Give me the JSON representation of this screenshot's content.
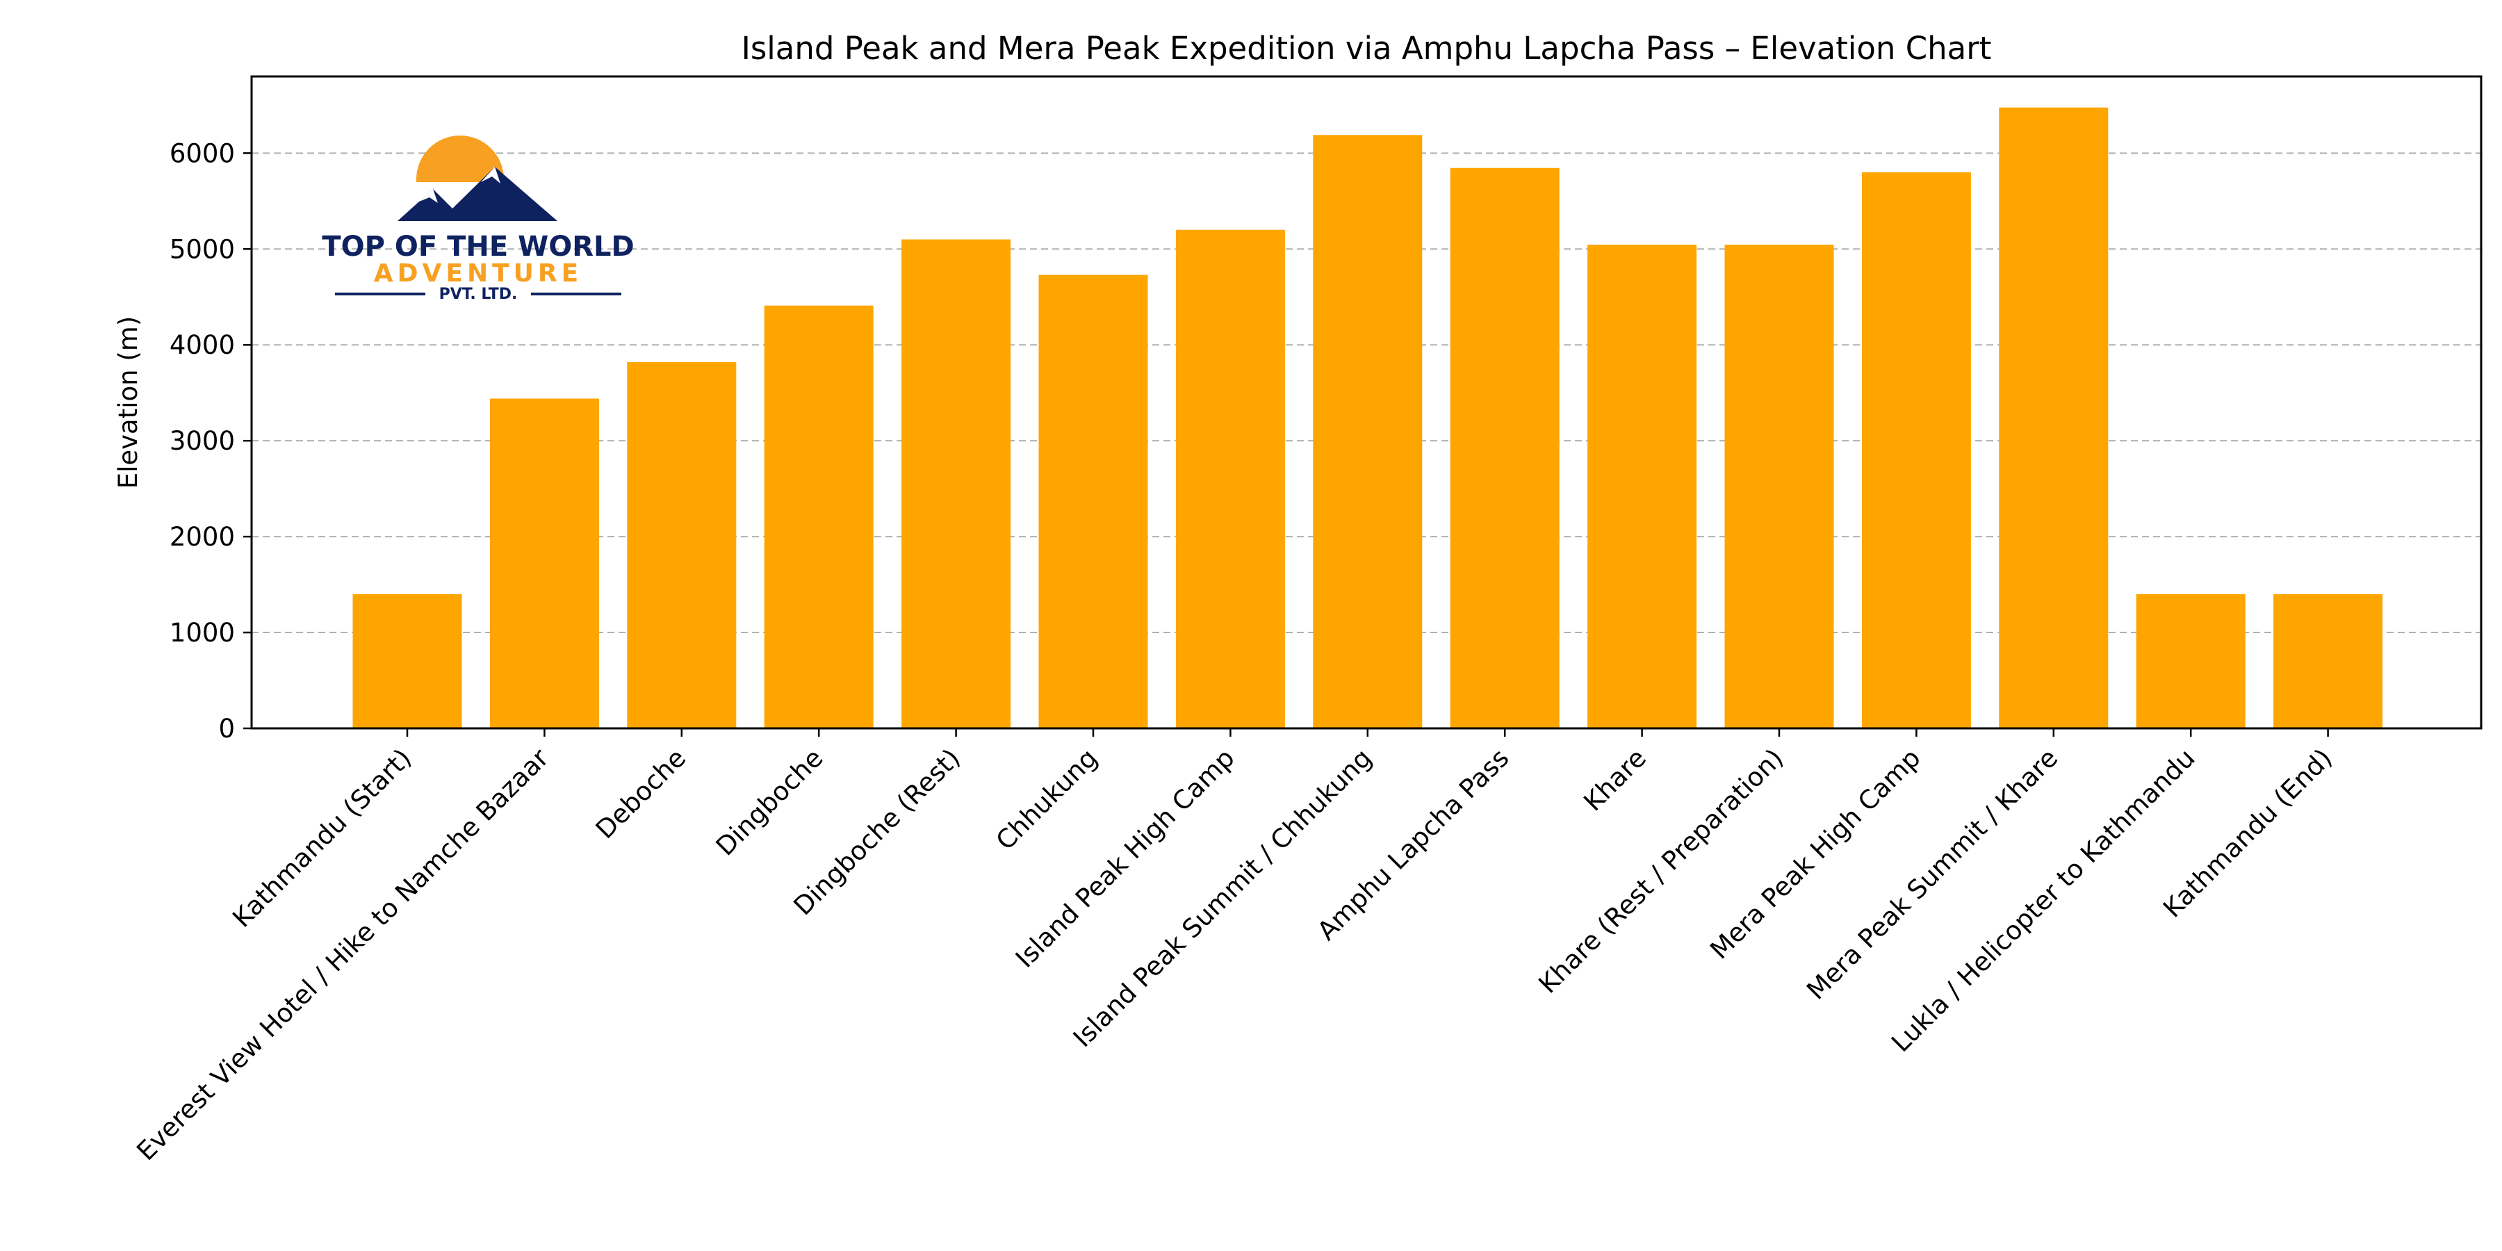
{
  "chart_data": {
    "type": "bar",
    "title": "Island Peak and Mera Peak Expedition via Amphu Lapcha Pass – Elevation Chart",
    "xlabel": "",
    "ylabel": "Elevation (m)",
    "ylim": [
      0,
      6800
    ],
    "yticks": [
      0,
      1000,
      2000,
      3000,
      4000,
      5000,
      6000
    ],
    "grid": "horizontal-dashed",
    "bar_color": "#FFA500",
    "categories": [
      "Kathmandu (Start)",
      "Everest View Hotel / Hike to Namche Bazaar",
      "Deboche",
      "Dingboche",
      "Dingboche (Rest)",
      "Chhukung",
      "Island Peak High Camp",
      "Island Peak Summit / Chhukung",
      "Amphu Lapcha Pass",
      "Khare",
      "Khare (Rest / Preparation)",
      "Mera Peak High Camp",
      "Mera Peak Summit / Khare",
      "Lukla / Helicopter to Kathmandu",
      "Kathmandu (End)"
    ],
    "values": [
      1400,
      3440,
      3820,
      4410,
      5100,
      4730,
      5200,
      6189,
      5845,
      5045,
      5045,
      5800,
      6476,
      1400,
      1400
    ]
  },
  "logo": {
    "line1": "TOP OF THE WORLD",
    "line2": "ADVENTURE",
    "line3": "PVT. LTD.",
    "navy": "#0F2260",
    "orange": "#F7A021"
  }
}
